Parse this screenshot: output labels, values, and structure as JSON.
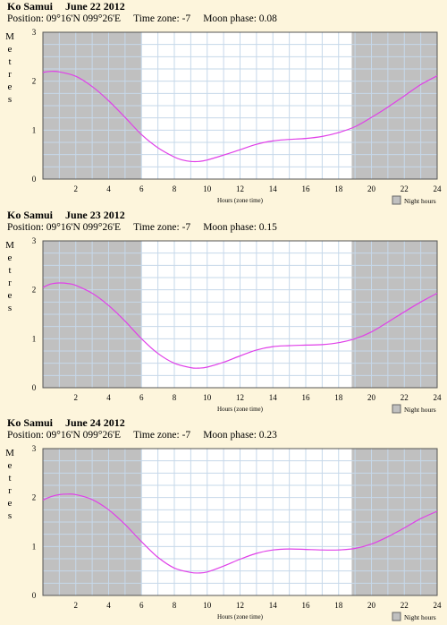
{
  "colors": {
    "background": "#fdf5dc",
    "day": "#ffffff",
    "night": "#c0c0c0",
    "grid": "#c6d8ea",
    "curve": "#e040e8"
  },
  "chart_data": [
    {
      "type": "line",
      "location": "Ko Samui",
      "date": "June 22 2012",
      "position": "Position: 09°16'N 099°26'E",
      "timezone": "Time zone: -7",
      "moon_phase": "Moon phase: 0.08",
      "ylabel": "Metres",
      "xlabel": "Hours (zone time)",
      "legend": "Night hours",
      "xlim": [
        0,
        24
      ],
      "ylim": [
        0,
        3
      ],
      "x_ticks": [
        2,
        4,
        6,
        8,
        10,
        12,
        14,
        16,
        18,
        20,
        22,
        24
      ],
      "y_ticks": [
        0,
        1,
        2,
        3
      ],
      "night_before": 6.0,
      "night_after": 18.8,
      "x": [
        0,
        0.5,
        1,
        2,
        3,
        4,
        5,
        6,
        7,
        8,
        8.5,
        9,
        9.5,
        10,
        11,
        12,
        13,
        14,
        15,
        16,
        17,
        18,
        19,
        20,
        21,
        22,
        23,
        24
      ],
      "y": [
        2.18,
        2.2,
        2.19,
        2.1,
        1.89,
        1.6,
        1.26,
        0.91,
        0.64,
        0.45,
        0.39,
        0.36,
        0.36,
        0.39,
        0.49,
        0.6,
        0.71,
        0.78,
        0.81,
        0.83,
        0.87,
        0.95,
        1.07,
        1.26,
        1.47,
        1.7,
        1.93,
        2.11
      ]
    },
    {
      "type": "line",
      "location": "Ko Samui",
      "date": "June 23 2012",
      "position": "Position: 09°16'N 099°26'E",
      "timezone": "Time zone: -7",
      "moon_phase": "Moon phase: 0.15",
      "ylabel": "Metres",
      "xlabel": "Hours (zone time)",
      "legend": "Night hours",
      "xlim": [
        0,
        24
      ],
      "ylim": [
        0,
        3
      ],
      "x_ticks": [
        2,
        4,
        6,
        8,
        10,
        12,
        14,
        16,
        18,
        20,
        22,
        24
      ],
      "y_ticks": [
        0,
        1,
        2,
        3
      ],
      "night_before": 6.0,
      "night_after": 18.8,
      "x": [
        0,
        0.5,
        1,
        1.5,
        2,
        3,
        4,
        5,
        6,
        7,
        8,
        9,
        9.5,
        10,
        11,
        12,
        13,
        14,
        15,
        16,
        17,
        18,
        19,
        20,
        21,
        22,
        23,
        24
      ],
      "y": [
        2.05,
        2.12,
        2.14,
        2.13,
        2.09,
        1.93,
        1.68,
        1.36,
        1.0,
        0.7,
        0.5,
        0.41,
        0.4,
        0.42,
        0.52,
        0.65,
        0.77,
        0.84,
        0.86,
        0.87,
        0.88,
        0.92,
        1.0,
        1.14,
        1.34,
        1.55,
        1.75,
        1.93
      ]
    },
    {
      "type": "line",
      "location": "Ko Samui",
      "date": "June 24 2012",
      "position": "Position: 09°16'N 099°26'E",
      "timezone": "Time zone: -7",
      "moon_phase": "Moon phase: 0.23",
      "ylabel": "Metres",
      "xlabel": "Hours (zone time)",
      "legend": "Night hours",
      "xlim": [
        0,
        24
      ],
      "ylim": [
        0,
        3
      ],
      "x_ticks": [
        2,
        4,
        6,
        8,
        10,
        12,
        14,
        16,
        18,
        20,
        22,
        24
      ],
      "y_ticks": [
        0,
        1,
        2,
        3
      ],
      "night_before": 6.0,
      "night_after": 18.8,
      "x": [
        0,
        0.5,
        1,
        1.5,
        2,
        3,
        4,
        5,
        6,
        7,
        8,
        9,
        9.5,
        10,
        11,
        12,
        13,
        14,
        15,
        16,
        17,
        18,
        19,
        20,
        21,
        22,
        23,
        24
      ],
      "y": [
        1.95,
        2.02,
        2.06,
        2.07,
        2.06,
        1.96,
        1.75,
        1.45,
        1.1,
        0.78,
        0.56,
        0.47,
        0.46,
        0.48,
        0.6,
        0.74,
        0.86,
        0.93,
        0.95,
        0.94,
        0.93,
        0.93,
        0.96,
        1.05,
        1.2,
        1.38,
        1.57,
        1.72
      ]
    }
  ]
}
